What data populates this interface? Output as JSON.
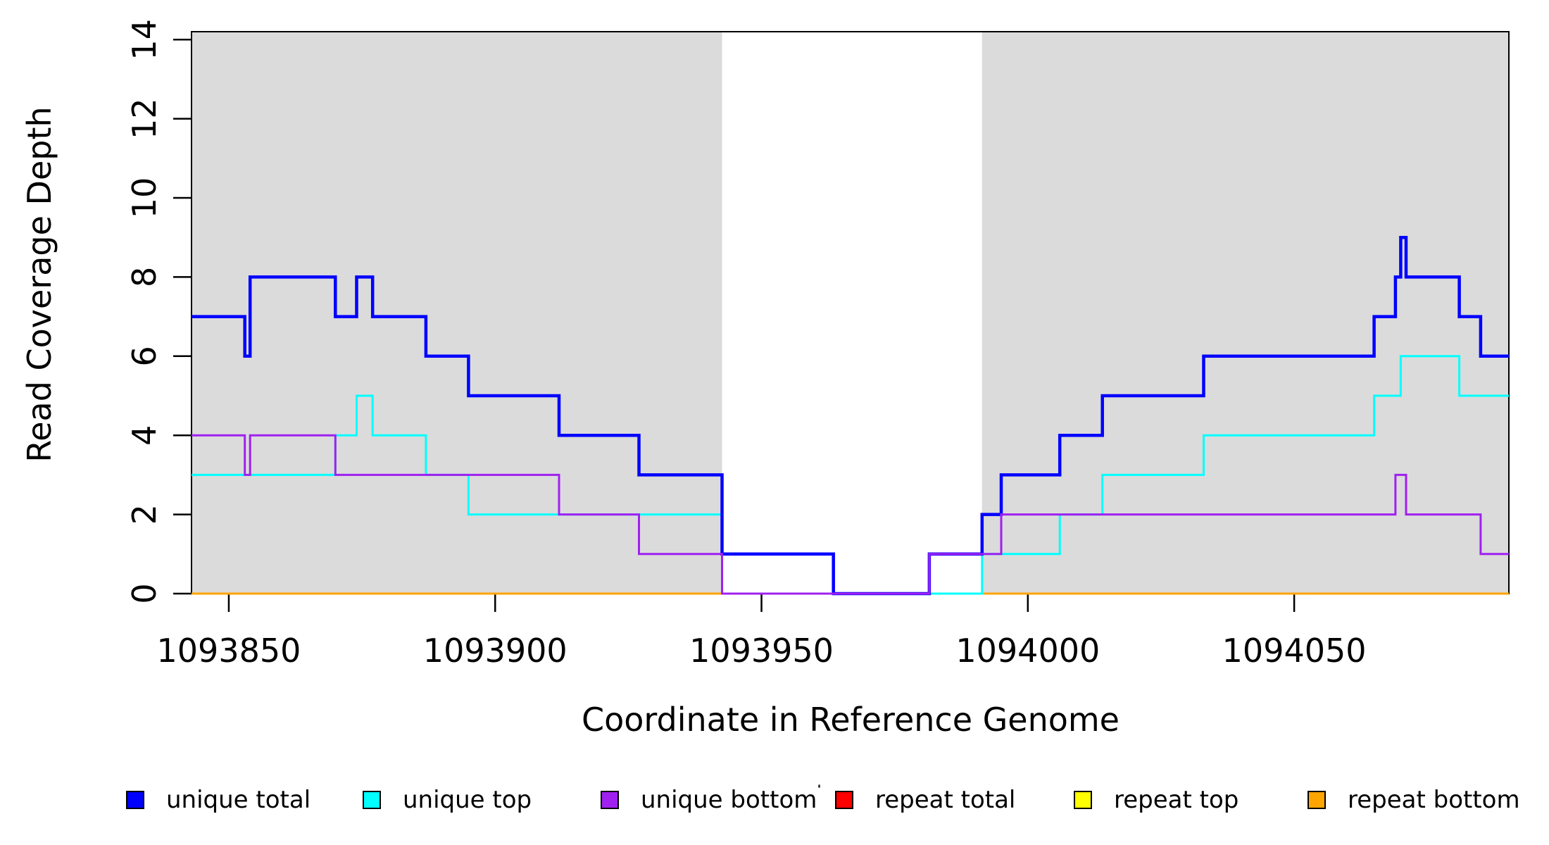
{
  "chart_data": {
    "type": "line",
    "subtype": "step-coverage",
    "title": "",
    "xlabel": "Coordinate in Reference Genome",
    "ylabel": "Read Coverage Depth",
    "xlim": [
      1093843,
      1094090.3
    ],
    "ylim": [
      0,
      14
    ],
    "xticks": [
      1093850,
      1093900,
      1093950,
      1094000,
      1094050
    ],
    "yticks": [
      0,
      2,
      4,
      6,
      8,
      10,
      12,
      14
    ],
    "grid": false,
    "background_color": "#ffffff",
    "shaded_region_color": "#dbdbdb",
    "shaded_regions": [
      {
        "x0": 1093843,
        "x1": 1093942.6
      },
      {
        "x0": 1093991.4,
        "x1": 1094090.3
      }
    ],
    "series": [
      {
        "name": "unique total",
        "color": "#0000ff",
        "linewidth": 4.5,
        "steps": [
          [
            1093843,
            7
          ],
          [
            1093853,
            6
          ],
          [
            1093854,
            8
          ],
          [
            1093870,
            7
          ],
          [
            1093874,
            8
          ],
          [
            1093877,
            7
          ],
          [
            1093887,
            6
          ],
          [
            1093895,
            5
          ],
          [
            1093912,
            4
          ],
          [
            1093927,
            3
          ],
          [
            1093942.6,
            1
          ],
          [
            1093963.5,
            0
          ],
          [
            1093981.5,
            1
          ],
          [
            1093991.4,
            2
          ],
          [
            1093995,
            3
          ],
          [
            1094006,
            4
          ],
          [
            1094014,
            5
          ],
          [
            1094033,
            6
          ],
          [
            1094065,
            7
          ],
          [
            1094069,
            8
          ],
          [
            1094070,
            9
          ],
          [
            1094071,
            8
          ],
          [
            1094081,
            7
          ],
          [
            1094085,
            6
          ]
        ]
      },
      {
        "name": "unique top",
        "color": "#00ffff",
        "linewidth": 3,
        "steps": [
          [
            1093843,
            3
          ],
          [
            1093870,
            4
          ],
          [
            1093874,
            5
          ],
          [
            1093877,
            4
          ],
          [
            1093887,
            3
          ],
          [
            1093895,
            2
          ],
          [
            1093942.6,
            1
          ],
          [
            1093963.5,
            0
          ],
          [
            1093991.4,
            1
          ],
          [
            1094006,
            2
          ],
          [
            1094014,
            3
          ],
          [
            1094033,
            4
          ],
          [
            1094065,
            5
          ],
          [
            1094070,
            6
          ],
          [
            1094081,
            5
          ]
        ]
      },
      {
        "name": "unique bottom",
        "color": "#a020f0",
        "linewidth": 3,
        "steps": [
          [
            1093843,
            4
          ],
          [
            1093853,
            3
          ],
          [
            1093854,
            4
          ],
          [
            1093870,
            3
          ],
          [
            1093912,
            2
          ],
          [
            1093927,
            1
          ],
          [
            1093942.6,
            0
          ],
          [
            1093981.5,
            1
          ],
          [
            1093995,
            2
          ],
          [
            1094069,
            3
          ],
          [
            1094071,
            2
          ],
          [
            1094085,
            1
          ]
        ]
      },
      {
        "name": "repeat total",
        "color": "#ff0000",
        "linewidth": 2.5,
        "steps": [
          [
            1093843,
            0
          ]
        ]
      },
      {
        "name": "repeat top",
        "color": "#ffff00",
        "linewidth": 2.5,
        "steps": [
          [
            1093843,
            0
          ]
        ]
      },
      {
        "name": "repeat bottom",
        "color": "#ffa500",
        "linewidth": 3,
        "steps": [
          [
            1093843,
            0
          ]
        ]
      }
    ],
    "draw_order": [
      "repeat total",
      "repeat top",
      "repeat bottom",
      "unique top",
      "unique total",
      "unique bottom"
    ],
    "legend": {
      "position": "bottom",
      "items": [
        {
          "label": "unique total",
          "color": "#0000ff"
        },
        {
          "label": "unique top",
          "color": "#00ffff"
        },
        {
          "label": "unique bottom",
          "color": "#a020f0"
        },
        {
          "label": "repeat total",
          "color": "#ff0000"
        },
        {
          "label": "repeat top",
          "color": "#ffff00"
        },
        {
          "label": "repeat bottom",
          "color": "#ffa500"
        }
      ]
    }
  }
}
